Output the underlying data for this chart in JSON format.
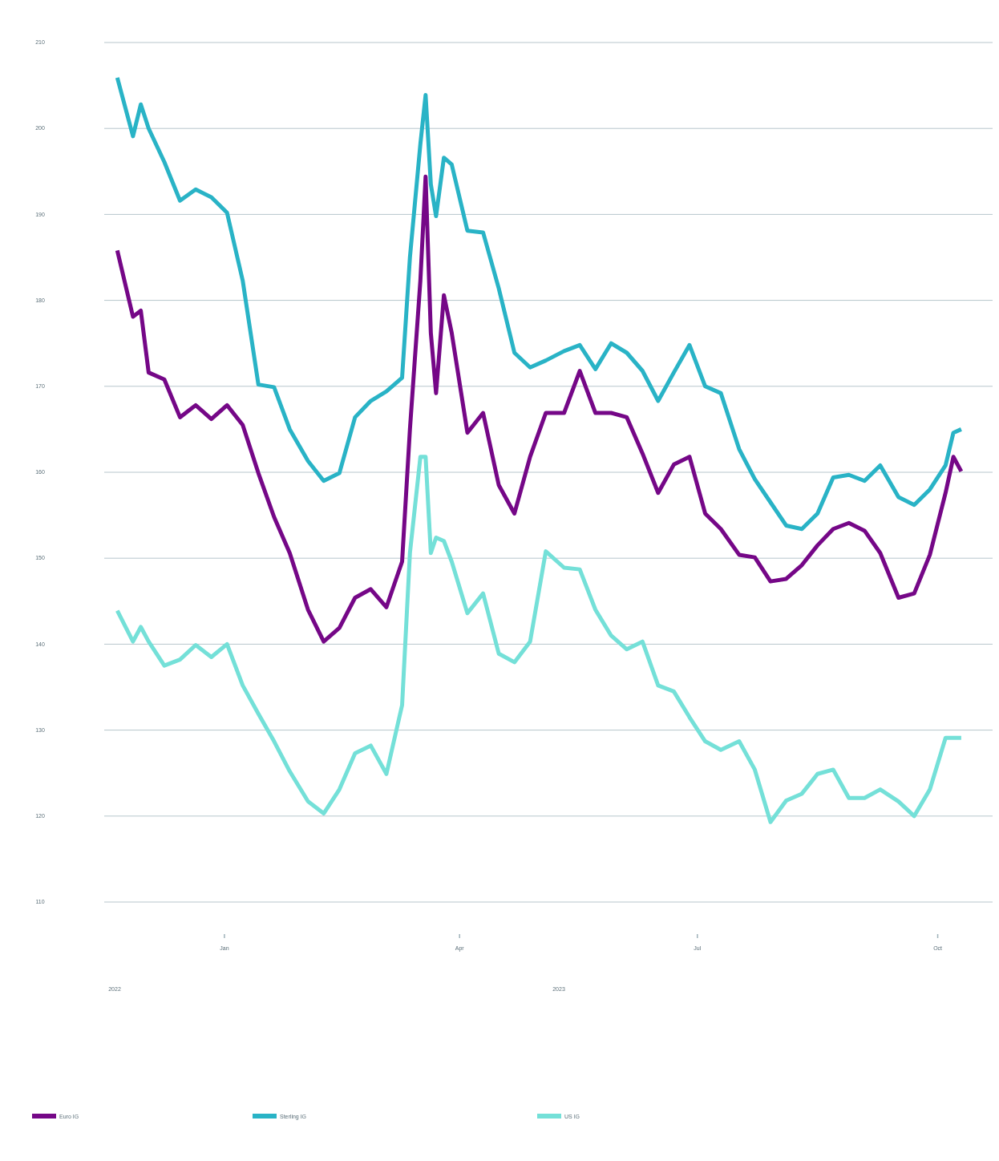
{
  "chart_data": {
    "type": "line",
    "x": [
      "2022-11-21",
      "2022-11-27",
      "2022-11-30",
      "2022-12-03",
      "2022-12-09",
      "2022-12-15",
      "2022-12-21",
      "2022-12-27",
      "2023-01-02",
      "2023-01-08",
      "2023-01-14",
      "2023-01-20",
      "2023-01-26",
      "2023-02-02",
      "2023-02-08",
      "2023-02-14",
      "2023-02-20",
      "2023-02-26",
      "2023-03-04",
      "2023-03-10",
      "2023-03-13",
      "2023-03-17",
      "2023-03-19",
      "2023-03-21",
      "2023-03-23",
      "2023-03-26",
      "2023-03-29",
      "2023-04-04",
      "2023-04-10",
      "2023-04-16",
      "2023-04-22",
      "2023-04-28",
      "2023-05-04",
      "2023-05-11",
      "2023-05-17",
      "2023-05-23",
      "2023-05-29",
      "2023-06-04",
      "2023-06-10",
      "2023-06-16",
      "2023-06-22",
      "2023-06-28",
      "2023-07-04",
      "2023-07-10",
      "2023-07-17",
      "2023-07-23",
      "2023-07-29",
      "2023-08-04",
      "2023-08-10",
      "2023-08-16",
      "2023-08-22",
      "2023-08-28",
      "2023-09-03",
      "2023-09-09",
      "2023-09-16",
      "2023-09-22",
      "2023-09-28",
      "2023-10-04",
      "2023-10-07",
      "2023-10-10"
    ],
    "series": [
      {
        "name": "Euro IG",
        "color": "#750787",
        "values": [
          185.8,
          178.1,
          178.8,
          171.6,
          170.8,
          166.4,
          167.8,
          166.2,
          167.8,
          165.5,
          159.9,
          154.8,
          150.6,
          144,
          140.3,
          141.9,
          145.4,
          146.4,
          144.3,
          149.6,
          165,
          182.3,
          194.4,
          176.2,
          169.2,
          180.6,
          176.2,
          164.6,
          166.9,
          158.5,
          155.2,
          161.8,
          166.9,
          166.9,
          171.8,
          166.9,
          166.9,
          166.4,
          162.2,
          157.6,
          160.9,
          161.8,
          155.2,
          153.4,
          150.4,
          150.1,
          147.3,
          147.6,
          149.2,
          151.5,
          153.4,
          154.1,
          153.2,
          150.6,
          145.4,
          145.9,
          150.4,
          157.6,
          161.8,
          160.1
        ]
      },
      {
        "name": "Sterling IG",
        "color": "#29b3c6",
        "values": [
          205.9,
          199.1,
          202.8,
          200,
          196.1,
          191.6,
          192.9,
          192,
          190.2,
          182.3,
          170.2,
          169.9,
          165,
          161.3,
          159,
          159.9,
          166.4,
          168.3,
          169.4,
          171,
          185,
          198.2,
          203.9,
          193.5,
          189.8,
          196.6,
          195.8,
          188.1,
          187.9,
          181.4,
          173.9,
          172.2,
          173,
          174.1,
          174.8,
          172,
          175,
          173.9,
          171.8,
          168.3,
          171.6,
          174.8,
          170,
          169.2,
          162.7,
          159.2,
          156.5,
          153.8,
          153.4,
          155.2,
          159.4,
          159.7,
          159,
          160.8,
          157.1,
          156.2,
          158,
          160.8,
          164.6,
          165
        ]
      },
      {
        "name": "US IG",
        "color": "#74e0d8",
        "values": [
          143.9,
          140.3,
          142,
          140.3,
          137.5,
          138.2,
          139.9,
          138.5,
          140,
          135.2,
          131.9,
          128.7,
          125.2,
          121.7,
          120.3,
          123.1,
          127.3,
          128.2,
          124.9,
          132.9,
          150.6,
          161.8,
          161.8,
          150.6,
          152.4,
          152,
          149.6,
          143.6,
          145.9,
          138.9,
          137.9,
          140.3,
          150.8,
          148.9,
          148.7,
          144,
          141,
          139.4,
          140.3,
          135.2,
          134.5,
          131.5,
          128.7,
          127.7,
          128.7,
          125.4,
          119.3,
          121.8,
          122.6,
          124.9,
          125.4,
          122.1,
          122.1,
          123.1,
          121.7,
          120,
          123.1,
          129.1,
          129.1,
          129.1
        ]
      }
    ],
    "xlim": [
      "2022-11-16",
      "2023-10-22"
    ],
    "xticks": [
      {
        "value": "2023-01-01",
        "label": "Jan"
      },
      {
        "value": "2023-04-01",
        "label": "Apr"
      },
      {
        "value": "2023-07-01",
        "label": "Jul"
      },
      {
        "value": "2023-10-01",
        "label": "Oct"
      }
    ],
    "ylim": [
      110,
      210
    ],
    "yticks": [
      110,
      120,
      130,
      140,
      150,
      160,
      170,
      180,
      190,
      200,
      210
    ],
    "annotations": [
      "2022",
      "2023"
    ],
    "grid": "y",
    "legend": "bottom",
    "line_style": "solid",
    "marker": "none"
  }
}
